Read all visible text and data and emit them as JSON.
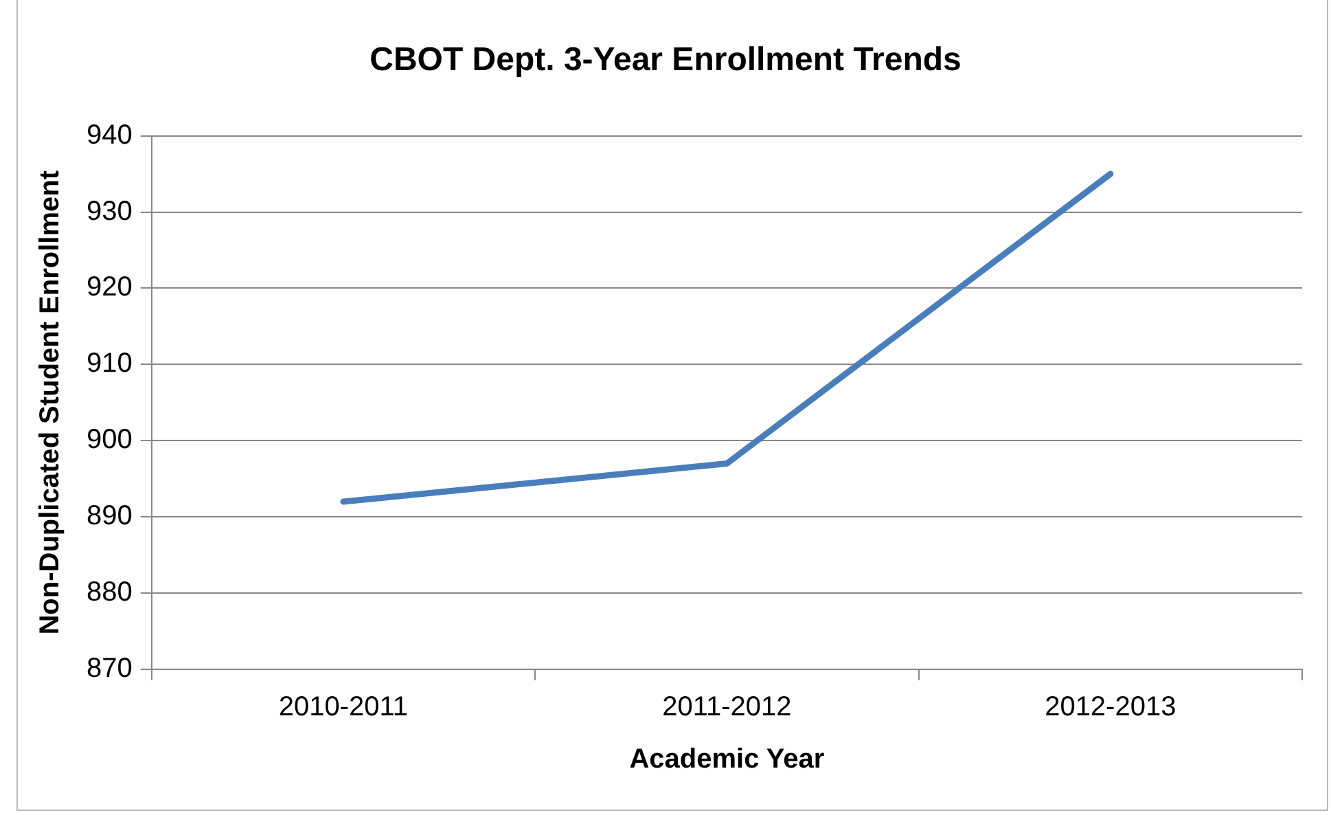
{
  "chart_data": {
    "type": "line",
    "title": "CBOT Dept. 3-Year Enrollment Trends",
    "xlabel": "Academic Year",
    "ylabel": "Non-Duplicated Student Enrollment",
    "categories": [
      "2010-2011",
      "2011-2012",
      "2012-2013"
    ],
    "series": [
      {
        "color": "#4a7ebb",
        "values": [
          892,
          897,
          935
        ]
      }
    ],
    "ylim": [
      870,
      940
    ],
    "yticks": [
      870,
      880,
      890,
      900,
      910,
      920,
      930,
      940
    ],
    "grid": "y",
    "legend": false,
    "marker": "none",
    "line_style": "solid"
  }
}
